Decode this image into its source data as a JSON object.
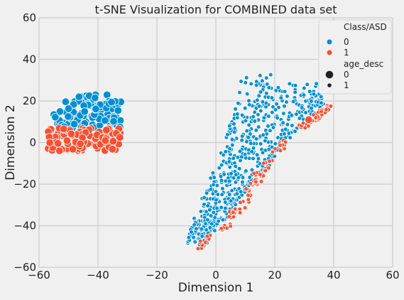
{
  "chart_data": {
    "type": "scatter",
    "title": "t-SNE Visualization for COMBINED data set",
    "xlabel": "Dimension 1",
    "ylabel": "Dimension 2",
    "xlim": [
      -60,
      60
    ],
    "ylim": [
      -60,
      60
    ],
    "xticks": [
      -60,
      -40,
      -20,
      0,
      20,
      40,
      60
    ],
    "yticks": [
      -60,
      -40,
      -20,
      0,
      20,
      40,
      60
    ],
    "xtick_labels": [
      "−60",
      "−40",
      "−20",
      "0",
      "20",
      "40",
      "60"
    ],
    "ytick_labels": [
      "−60",
      "−40",
      "−20",
      "0",
      "20",
      "40",
      "60"
    ],
    "grid": true,
    "legend_position": "top-right",
    "legend": {
      "hue_title": "Class/ASD",
      "hue_entries": [
        {
          "label": "0",
          "color": "#008fd5"
        },
        {
          "label": "1",
          "color": "#fc4f30"
        }
      ],
      "size_title": "age_desc",
      "size_entries": [
        {
          "label": "0",
          "size": "large"
        },
        {
          "label": "1",
          "size": "small"
        }
      ]
    },
    "colors": {
      "class_0": "#008fd5",
      "class_1": "#fc4f30"
    },
    "clusters": [
      {
        "hue": "0",
        "size": "0",
        "x_range": [
          -56,
          -32
        ],
        "y_range": [
          7,
          23
        ],
        "count": 130
      },
      {
        "hue": "1",
        "size": "0",
        "x_range": [
          -57,
          -32
        ],
        "y_range": [
          -4,
          7
        ],
        "count": 120
      },
      {
        "hue": "0",
        "size": "1",
        "band": "main",
        "count": 600
      },
      {
        "hue": "1",
        "size": "1",
        "band": "outer",
        "count": 170
      }
    ]
  }
}
